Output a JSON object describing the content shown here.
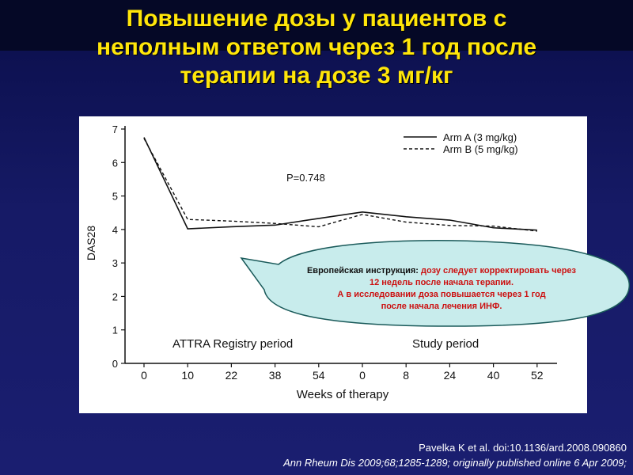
{
  "slide": {
    "title_lines": [
      "Повышение дозы у пациентов с",
      "неполным ответом через 1 год после",
      "терапии на дозе 3 мг/кг"
    ]
  },
  "callout": {
    "prefix": "Европейская  инструкция: ",
    "line1": "дозу следует корректировать через",
    "line2": "12 недель после начала терапии.",
    "line3": "А в исследовании  доза повышается через 1 год",
    "line4": "после начала лечения ИНФ.",
    "prefix_color": "#111111",
    "text_color": "#cc1111",
    "fill_color": "#c8ecec"
  },
  "citation": {
    "line1": "Pavelka K et al. doi:10.1136/ard.2008.090860",
    "line2": "Ann Rheum Dis 2009;68;1285-1289; originally published online 6 Apr 2009;"
  },
  "chart_data": {
    "type": "line",
    "xlabel": "Weeks of therapy",
    "ylabel": "DAS28",
    "categories": [
      "0",
      "10",
      "22",
      "38",
      "54",
      "0",
      "8",
      "24",
      "40",
      "52"
    ],
    "ylim": [
      0,
      7
    ],
    "yticks": [
      "0",
      "1",
      "2",
      "3",
      "4",
      "5",
      "6",
      "7"
    ],
    "grid": false,
    "legend_position": "top-right",
    "series": [
      {
        "name": "Arm A (3 mg/kg)",
        "style": "solid",
        "values": [
          6.75,
          4.02,
          4.08,
          4.13,
          4.33,
          4.52,
          4.38,
          4.28,
          4.05,
          3.98
        ]
      },
      {
        "name": "Arm B (5 mg/kg)",
        "style": "dashed",
        "values": [
          6.72,
          4.3,
          4.25,
          4.18,
          4.08,
          4.45,
          4.22,
          4.12,
          4.1,
          3.95
        ]
      }
    ],
    "annotations": {
      "p_value": "P=0.748",
      "period_left": "ATTRA Registry period",
      "period_right": "Study period"
    }
  }
}
